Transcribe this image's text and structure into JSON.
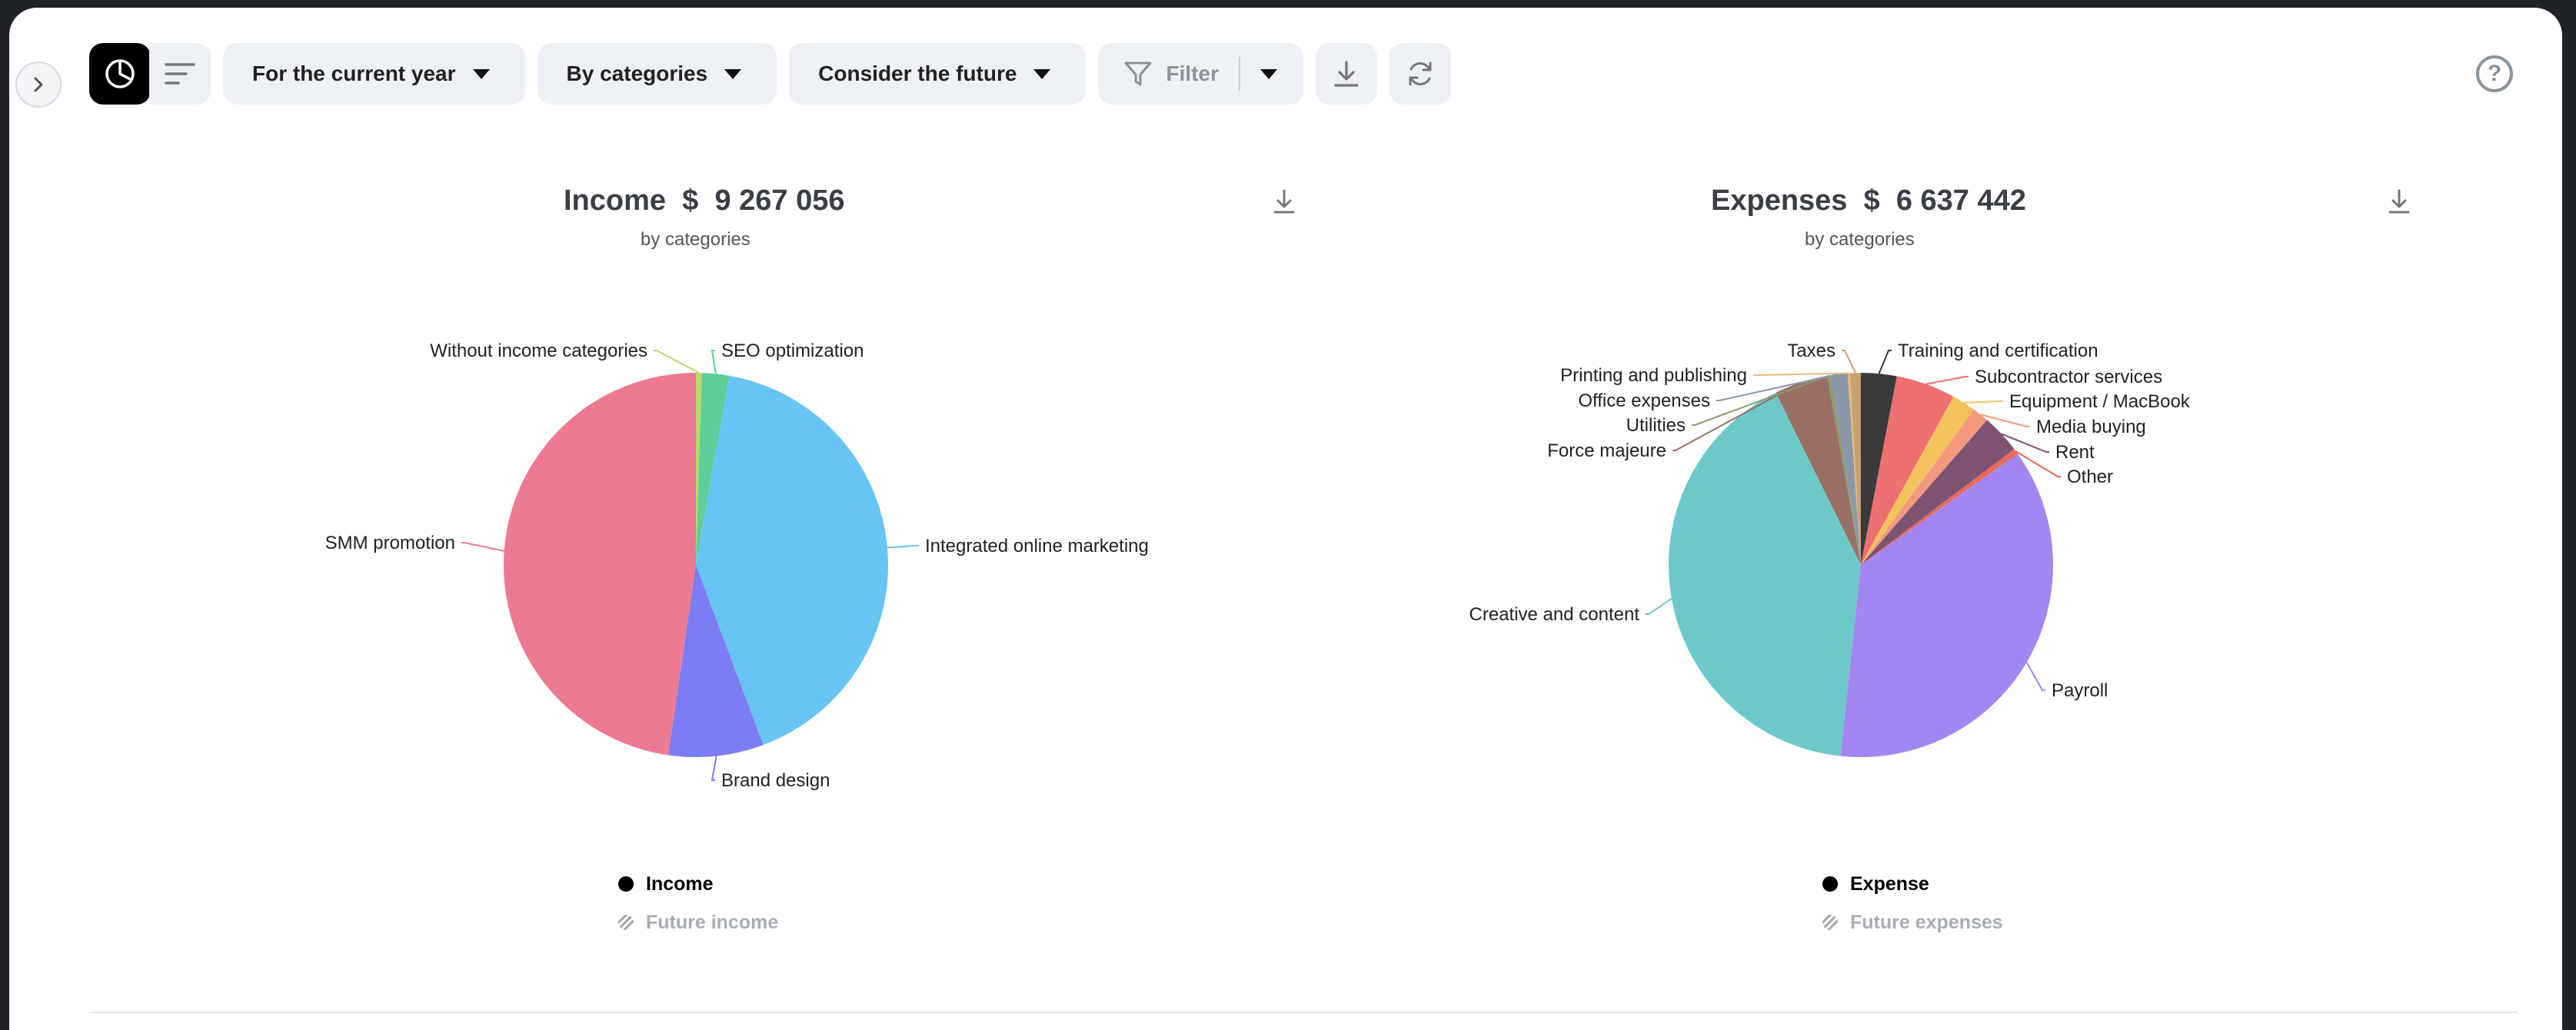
{
  "toolbar": {
    "period_label": "For the current year",
    "grouping_label": "By categories",
    "future_label": "Consider the future",
    "filter_label": "Filter"
  },
  "icons": {
    "expand": "chevron-right-icon",
    "chart_view": "pie-chart-icon",
    "list_view": "list-icon",
    "download": "download-icon",
    "refresh": "refresh-icon",
    "help": "help-icon"
  },
  "help_glyph": "?",
  "income": {
    "title_prefix": "Income",
    "currency": "$",
    "total": "9 267 056",
    "subtitle": "by categories",
    "legend_actual": "Income",
    "legend_future": "Future income"
  },
  "expenses": {
    "title_prefix": "Expenses",
    "currency": "$",
    "total": "6 637 442",
    "subtitle": "by categories",
    "legend_actual": "Expense",
    "legend_future": "Future expenses"
  },
  "chart_data": [
    {
      "type": "pie",
      "title": "Income $ 9 267 056",
      "subtitle": "by categories",
      "slices": [
        {
          "label": "Without income categories",
          "value": 0.5,
          "color": "#b9d86a"
        },
        {
          "label": "SEO optimization",
          "value": 2.3,
          "color": "#5ccf9a"
        },
        {
          "label": "Integrated online marketing",
          "value": 41.5,
          "color": "#67c5f5"
        },
        {
          "label": "Brand design",
          "value": 8.0,
          "color": "#7c7cf5"
        },
        {
          "label": "SMM promotion",
          "value": 47.7,
          "color": "#ee7a91"
        }
      ],
      "legend": [
        "Income",
        "Future income"
      ]
    },
    {
      "type": "pie",
      "title": "Expenses $ 6 637 442",
      "subtitle": "by categories",
      "slices": [
        {
          "label": "Training and certification",
          "value": 3.0,
          "color": "#3a3a3c"
        },
        {
          "label": "Subcontractor services",
          "value": 5.0,
          "color": "#ee7070"
        },
        {
          "label": "Equipment / MacBook",
          "value": 2.0,
          "color": "#f2c35c"
        },
        {
          "label": "Media buying",
          "value": 1.4,
          "color": "#f39a7e"
        },
        {
          "label": "Rent",
          "value": 3.3,
          "color": "#7e5372"
        },
        {
          "label": "Other",
          "value": 0.5,
          "color": "#e86a5a"
        },
        {
          "label": "Payroll",
          "value": 36.5,
          "color": "#a486f2"
        },
        {
          "label": "Creative and content",
          "value": 41.0,
          "color": "#6dc9c9"
        },
        {
          "label": "Force majeure",
          "value": 4.5,
          "color": "#9a7065"
        },
        {
          "label": "Utilities",
          "value": 0.3,
          "color": "#8a9b6e"
        },
        {
          "label": "Office expenses",
          "value": 1.4,
          "color": "#8a98a8"
        },
        {
          "label": "Printing and publishing",
          "value": 0.2,
          "color": "#e6b97a"
        },
        {
          "label": "Taxes",
          "value": 0.9,
          "color": "#c9a072"
        }
      ],
      "legend": [
        "Expense",
        "Future expenses"
      ]
    }
  ]
}
